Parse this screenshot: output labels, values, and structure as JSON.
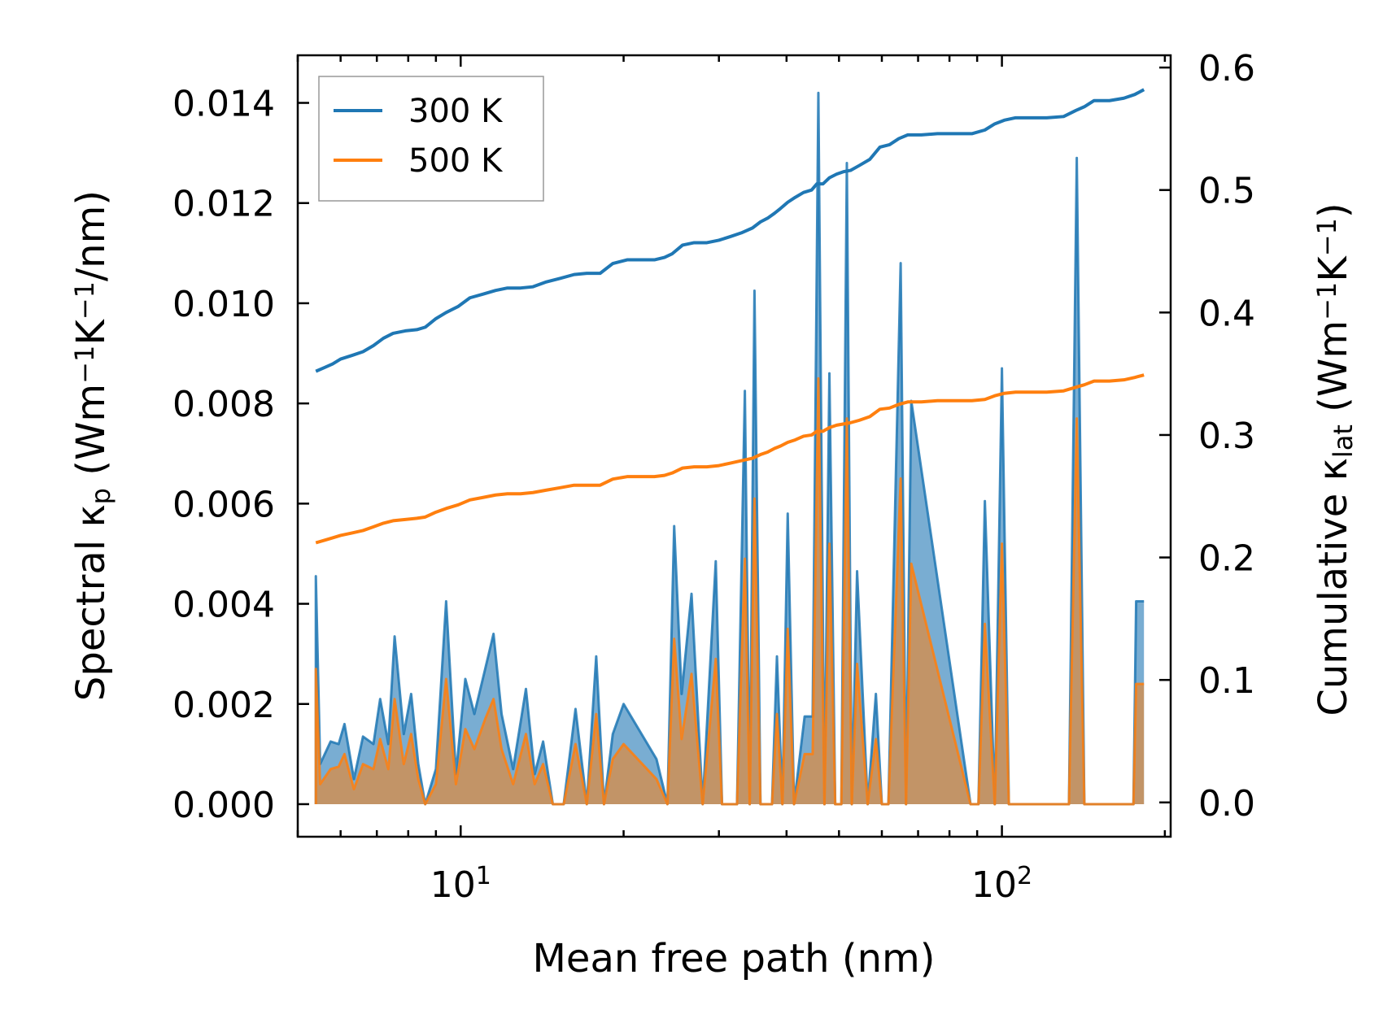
{
  "chart_data": {
    "type": "line",
    "x_scale": "log",
    "xlabel": "Mean free path (nm)",
    "ylabel_left": {
      "base": "Spectral κ",
      "sub": "p",
      "unit_open": " (Wm",
      "sup1": "−1",
      "mid": "K",
      "sup2": "−1",
      "unit_close": "/nm)"
    },
    "ylabel_right": {
      "base": "Cumulative κ",
      "sub": "lat",
      "unit_open": " (Wm",
      "sup1": "−1",
      "mid": "K",
      "sup2": "−1",
      "unit_close": ")"
    },
    "xlim": [
      5.0,
      205
    ],
    "ylim_left": [
      -0.00065,
      0.01495
    ],
    "ylim_right": [
      -0.028,
      0.61
    ],
    "x_major_ticks": [
      {
        "value": 10,
        "base": "10",
        "exp": "1"
      },
      {
        "value": 100,
        "base": "10",
        "exp": "2"
      }
    ],
    "y_left_ticks": [
      {
        "value": 0.0,
        "label": "0.000"
      },
      {
        "value": 0.002,
        "label": "0.002"
      },
      {
        "value": 0.004,
        "label": "0.004"
      },
      {
        "value": 0.006,
        "label": "0.006"
      },
      {
        "value": 0.008,
        "label": "0.008"
      },
      {
        "value": 0.01,
        "label": "0.010"
      },
      {
        "value": 0.012,
        "label": "0.012"
      },
      {
        "value": 0.014,
        "label": "0.014"
      }
    ],
    "y_right_ticks": [
      {
        "value": 0.0,
        "label": "0.0"
      },
      {
        "value": 0.1,
        "label": "0.1"
      },
      {
        "value": 0.2,
        "label": "0.2"
      },
      {
        "value": 0.3,
        "label": "0.3"
      },
      {
        "value": 0.4,
        "label": "0.4"
      },
      {
        "value": 0.5,
        "label": "0.5"
      },
      {
        "value": 0.6,
        "label": "0.6"
      }
    ],
    "legend_position": "top-left",
    "series": [
      {
        "name": "300 K",
        "color": "#1f77b4",
        "spectral_x": [
          5.4,
          5.4,
          5.5,
          5.75,
          5.95,
          6.1,
          6.35,
          6.6,
          6.9,
          7.1,
          7.35,
          7.55,
          7.85,
          8.1,
          8.35,
          8.6,
          9.0,
          9.4,
          9.8,
          10.2,
          10.6,
          11.1,
          11.5,
          11.9,
          12.5,
          13.2,
          13.7,
          14.2,
          14.8,
          15.5,
          16.3,
          17.1,
          17.8,
          18.4,
          19.1,
          20.0,
          23.0,
          24.1,
          24.8,
          25.6,
          26.7,
          28.0,
          29.6,
          30.4,
          31.3,
          32.4,
          33.5,
          34.2,
          34.9,
          35.8,
          36.6,
          37.6,
          38.4,
          39.3,
          40.2,
          41.3,
          43.2,
          44.7,
          45.8,
          47.0,
          48.0,
          49.2,
          50.5,
          51.7,
          52.8,
          54.0,
          56.5,
          58.5,
          60.0,
          61.7,
          65.0,
          66.5,
          68.0,
          87.5,
          90.5,
          93.0,
          97.0,
          100.0,
          103.0,
          133.0,
          137.5,
          142.0,
          175.0,
          177.0,
          183.0
        ],
        "spectral_y": [
          0.0,
          0.00455,
          0.0008,
          0.00125,
          0.0012,
          0.0016,
          0.0005,
          0.00135,
          0.0012,
          0.0021,
          0.0012,
          0.00335,
          0.0014,
          0.0022,
          0.0008,
          0.0,
          0.0007,
          0.00405,
          0.0006,
          0.0025,
          0.0018,
          0.0027,
          0.0034,
          0.0018,
          0.0007,
          0.0023,
          0.0006,
          0.00125,
          0.0,
          0.0,
          0.0019,
          0.0,
          0.00295,
          0.0,
          0.0014,
          0.002,
          0.0009,
          0.0,
          0.00555,
          0.0022,
          0.0042,
          0.0,
          0.00485,
          0.0,
          0.0,
          0.0,
          0.00825,
          0.0,
          0.01025,
          0.0,
          0.0,
          0.0,
          0.00295,
          0.0,
          0.0058,
          0.0,
          0.00175,
          0.00175,
          0.0142,
          0.0,
          0.0086,
          0.0,
          0.0,
          0.0128,
          0.0,
          0.00465,
          0.0,
          0.0022,
          0.0,
          0.0,
          0.0108,
          0.0,
          0.00805,
          0.0,
          0.0,
          0.00605,
          0.0,
          0.0087,
          0.0,
          0.0,
          0.0129,
          0.0,
          0.0,
          0.00405,
          0.00405,
          0.0
        ],
        "cumulative_x": [
          5.4,
          5.6,
          5.8,
          6.0,
          6.3,
          6.6,
          6.9,
          7.2,
          7.5,
          7.9,
          8.3,
          8.6,
          9.0,
          9.4,
          9.9,
          10.4,
          11.0,
          11.6,
          12.2,
          12.9,
          13.6,
          14.4,
          15.3,
          16.2,
          17.1,
          18.1,
          19.1,
          20.3,
          21.5,
          22.8,
          23.8,
          24.6,
          25.7,
          27.0,
          28.5,
          30.0,
          31.5,
          33.0,
          34.6,
          35.8,
          36.9,
          38.0,
          39.0,
          40.2,
          41.5,
          43.0,
          44.5,
          45.5,
          46.7,
          48.0,
          49.5,
          51.0,
          52.5,
          54.5,
          57.0,
          59.5,
          62.0,
          64.5,
          67.0,
          71.0,
          76.0,
          82.0,
          88.0,
          93.0,
          97.0,
          101.0,
          106.0,
          113.0,
          121.0,
          130.0,
          137.0,
          142.0,
          148.0,
          158.0,
          168.0,
          176.0,
          183.0
        ],
        "cumulative_y": [
          0.352,
          0.355,
          0.358,
          0.362,
          0.365,
          0.368,
          0.373,
          0.379,
          0.383,
          0.385,
          0.386,
          0.388,
          0.395,
          0.4,
          0.405,
          0.412,
          0.415,
          0.418,
          0.42,
          0.42,
          0.421,
          0.425,
          0.428,
          0.431,
          0.432,
          0.432,
          0.44,
          0.443,
          0.443,
          0.443,
          0.445,
          0.448,
          0.455,
          0.457,
          0.457,
          0.459,
          0.462,
          0.465,
          0.469,
          0.474,
          0.477,
          0.481,
          0.485,
          0.49,
          0.494,
          0.498,
          0.5,
          0.505,
          0.505,
          0.51,
          0.513,
          0.515,
          0.516,
          0.52,
          0.525,
          0.535,
          0.537,
          0.542,
          0.545,
          0.545,
          0.546,
          0.546,
          0.546,
          0.549,
          0.554,
          0.557,
          0.559,
          0.559,
          0.559,
          0.56,
          0.565,
          0.568,
          0.573,
          0.573,
          0.575,
          0.578,
          0.582
        ]
      },
      {
        "name": "500 K",
        "color": "#ff7f0e",
        "spectral_x": [
          5.4,
          5.4,
          5.5,
          5.75,
          5.95,
          6.1,
          6.35,
          6.6,
          6.9,
          7.1,
          7.35,
          7.55,
          7.85,
          8.1,
          8.35,
          8.6,
          9.0,
          9.4,
          9.8,
          10.2,
          10.6,
          11.1,
          11.5,
          11.9,
          12.5,
          13.2,
          13.7,
          14.2,
          14.8,
          15.5,
          16.3,
          17.1,
          17.8,
          18.4,
          19.1,
          20.0,
          23.0,
          24.1,
          24.8,
          25.6,
          26.7,
          28.0,
          29.6,
          30.4,
          31.3,
          32.4,
          33.5,
          34.2,
          34.9,
          35.8,
          36.6,
          37.6,
          38.4,
          39.3,
          40.2,
          41.3,
          43.2,
          44.7,
          45.8,
          47.0,
          48.0,
          49.2,
          50.5,
          51.7,
          52.8,
          54.0,
          56.5,
          58.5,
          60.0,
          61.7,
          65.0,
          66.5,
          68.0,
          87.5,
          90.5,
          93.0,
          97.0,
          100.0,
          103.0,
          133.0,
          137.5,
          142.0,
          175.0,
          177.0,
          183.0
        ],
        "spectral_y": [
          0.0,
          0.0027,
          0.0004,
          0.0007,
          0.00075,
          0.001,
          0.0003,
          0.0008,
          0.0007,
          0.0013,
          0.0007,
          0.0021,
          0.0008,
          0.0014,
          0.0005,
          0.0,
          0.0004,
          0.0025,
          0.0004,
          0.0015,
          0.0011,
          0.0017,
          0.0021,
          0.0011,
          0.0004,
          0.0014,
          0.0004,
          0.0008,
          0.0,
          0.0,
          0.0012,
          0.0,
          0.0018,
          0.0,
          0.0009,
          0.0012,
          0.0005,
          0.0,
          0.0033,
          0.0013,
          0.0026,
          0.0,
          0.0029,
          0.0,
          0.0,
          0.0,
          0.0049,
          0.0,
          0.0061,
          0.0,
          0.0,
          0.0,
          0.0018,
          0.0,
          0.0035,
          0.0,
          0.001,
          0.001,
          0.0085,
          0.0,
          0.0052,
          0.0,
          0.0,
          0.0077,
          0.0,
          0.0028,
          0.0,
          0.0013,
          0.0,
          0.0,
          0.0065,
          0.0,
          0.0048,
          0.0,
          0.0,
          0.0036,
          0.0,
          0.0052,
          0.0,
          0.0,
          0.0077,
          0.0,
          0.0,
          0.0024,
          0.0024,
          0.0
        ],
        "cumulative_x": [
          5.4,
          5.6,
          5.8,
          6.0,
          6.3,
          6.6,
          6.9,
          7.2,
          7.5,
          7.9,
          8.3,
          8.6,
          9.0,
          9.4,
          9.9,
          10.4,
          11.0,
          11.6,
          12.2,
          12.9,
          13.6,
          14.4,
          15.3,
          16.2,
          17.1,
          18.1,
          19.1,
          20.3,
          21.5,
          22.8,
          23.8,
          24.6,
          25.7,
          27.0,
          28.5,
          30.0,
          31.5,
          33.0,
          34.6,
          35.8,
          36.9,
          38.0,
          39.0,
          40.2,
          41.5,
          43.0,
          44.5,
          45.5,
          46.7,
          48.0,
          49.5,
          51.0,
          52.5,
          54.5,
          57.0,
          59.5,
          62.0,
          64.5,
          67.0,
          71.0,
          76.0,
          82.0,
          88.0,
          93.0,
          97.0,
          101.0,
          106.0,
          113.0,
          121.0,
          130.0,
          137.0,
          142.0,
          148.0,
          158.0,
          168.0,
          176.0,
          183.0
        ],
        "cumulative_y": [
          0.212,
          0.214,
          0.216,
          0.218,
          0.22,
          0.222,
          0.225,
          0.228,
          0.23,
          0.231,
          0.232,
          0.233,
          0.237,
          0.24,
          0.243,
          0.247,
          0.249,
          0.251,
          0.252,
          0.252,
          0.253,
          0.255,
          0.257,
          0.259,
          0.259,
          0.259,
          0.264,
          0.266,
          0.266,
          0.266,
          0.267,
          0.269,
          0.273,
          0.274,
          0.274,
          0.275,
          0.277,
          0.279,
          0.281,
          0.284,
          0.286,
          0.289,
          0.291,
          0.294,
          0.296,
          0.299,
          0.3,
          0.303,
          0.303,
          0.306,
          0.308,
          0.309,
          0.31,
          0.312,
          0.315,
          0.321,
          0.322,
          0.325,
          0.327,
          0.327,
          0.328,
          0.328,
          0.328,
          0.329,
          0.332,
          0.334,
          0.335,
          0.335,
          0.335,
          0.336,
          0.339,
          0.341,
          0.344,
          0.344,
          0.345,
          0.347,
          0.349
        ]
      }
    ]
  }
}
